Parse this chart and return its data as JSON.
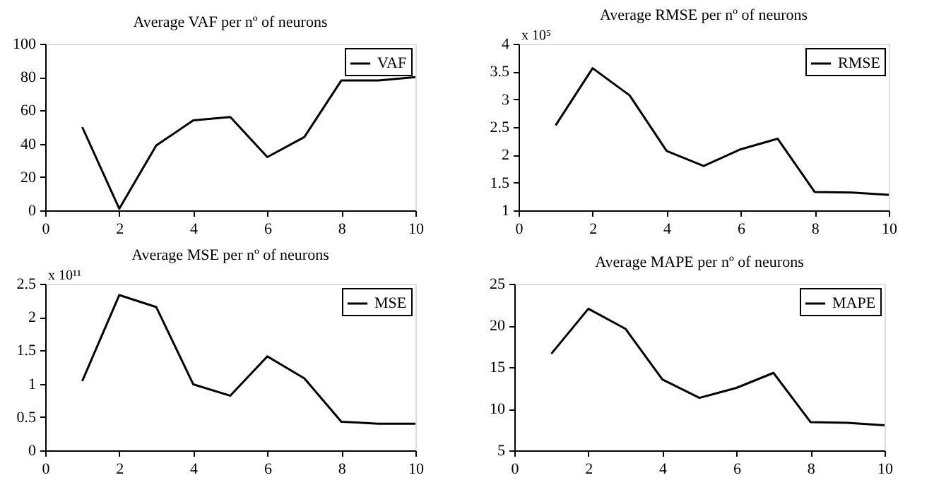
{
  "chart_data": [
    {
      "type": "line",
      "title": "Average VAF per nº of neurons",
      "x": [
        1,
        2,
        3,
        4,
        5,
        6,
        7,
        8,
        9,
        10
      ],
      "xlim": [
        0,
        10
      ],
      "xticks": [
        0,
        2,
        4,
        6,
        8,
        10
      ],
      "ylim": [
        0,
        100
      ],
      "yticks": [
        0,
        20,
        40,
        60,
        80,
        100
      ],
      "grid": false,
      "legend": "top right",
      "marker": "none",
      "line_style": "solid",
      "series": [
        {
          "name": "VAF",
          "color": "#000000",
          "values": [
            50,
            1,
            39,
            54,
            56,
            32,
            44,
            78,
            78,
            80
          ]
        }
      ]
    },
    {
      "type": "line",
      "title": "Average RMSE per nº of neurons",
      "annotations": [
        "x 10⁵"
      ],
      "x": [
        1,
        2,
        3,
        4,
        5,
        6,
        7,
        8,
        9,
        10
      ],
      "xlim": [
        0,
        10
      ],
      "xticks": [
        0,
        2,
        4,
        6,
        8,
        10
      ],
      "ylim": [
        1,
        4
      ],
      "yticks": [
        1,
        1.5,
        2,
        2.5,
        3,
        3.5,
        4
      ],
      "grid": false,
      "legend": "top right",
      "marker": "none",
      "line_style": "solid",
      "series": [
        {
          "name": "RMSE",
          "color": "#000000",
          "values": [
            2.53,
            3.56,
            3.07,
            2.07,
            1.8,
            2.1,
            2.29,
            1.33,
            1.32,
            1.28
          ]
        }
      ]
    },
    {
      "type": "line",
      "title": "Average MSE per nº of neurons",
      "annotations": [
        "x 10¹¹"
      ],
      "x": [
        1,
        2,
        3,
        4,
        5,
        6,
        7,
        8,
        9,
        10
      ],
      "xlim": [
        0,
        10
      ],
      "xticks": [
        0,
        2,
        4,
        6,
        8,
        10
      ],
      "ylim": [
        0,
        2.5
      ],
      "yticks": [
        0,
        0.5,
        1,
        1.5,
        2,
        2.5
      ],
      "grid": false,
      "legend": "top right",
      "marker": "none",
      "line_style": "solid",
      "series": [
        {
          "name": "MSE",
          "color": "#000000",
          "values": [
            1.04,
            2.33,
            2.15,
            0.99,
            0.82,
            1.41,
            1.08,
            0.43,
            0.4,
            0.4
          ]
        }
      ]
    },
    {
      "type": "line",
      "title": "Average MAPE per nº of neurons",
      "x": [
        1,
        2,
        3,
        4,
        5,
        6,
        7,
        8,
        9,
        10
      ],
      "xlim": [
        0,
        10
      ],
      "xticks": [
        0,
        2,
        4,
        6,
        8,
        10
      ],
      "ylim": [
        5,
        25
      ],
      "yticks": [
        5,
        10,
        15,
        20,
        25
      ],
      "grid": false,
      "legend": "top right",
      "marker": "none",
      "line_style": "solid",
      "series": [
        {
          "name": "MAPE",
          "color": "#000000",
          "values": [
            16.6,
            22,
            19.6,
            13.5,
            11.3,
            12.5,
            14.3,
            8.4,
            8.3,
            8.0
          ]
        }
      ]
    }
  ]
}
